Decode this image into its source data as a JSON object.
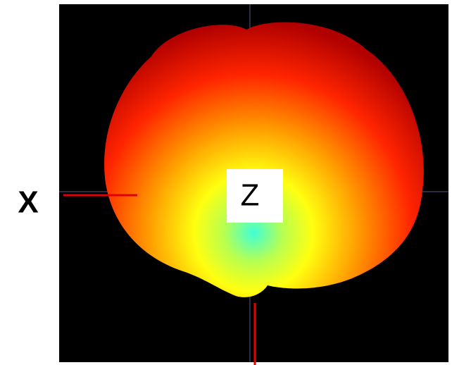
{
  "labels": {
    "x_axis": "X",
    "z_axis": "Z"
  }
}
